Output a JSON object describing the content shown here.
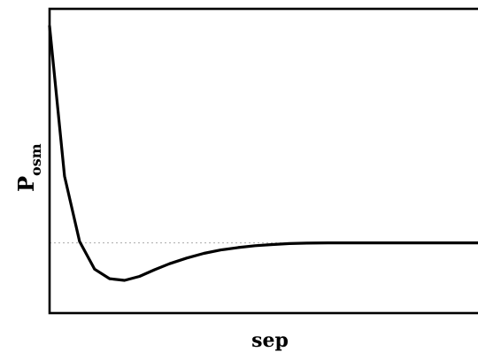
{
  "chart_data": {
    "type": "line",
    "xlabel": "sep",
    "ylabel": {
      "main": "P",
      "sub": "osm"
    },
    "xlim": [
      0,
      10
    ],
    "ylim": [
      -0.3,
      1.0
    ],
    "grid": false,
    "legend": "none",
    "reference_line": {
      "y": 0,
      "style": "dotted",
      "color": "#aaaaaa"
    },
    "series": [
      {
        "color": "#000000",
        "x": [
          0.0,
          0.35,
          0.7,
          1.05,
          1.4,
          1.75,
          2.1,
          2.45,
          2.8,
          3.2,
          3.6,
          4.0,
          4.4,
          4.8,
          5.2,
          5.6,
          6.0,
          6.5,
          7.0,
          7.5,
          8.0,
          8.5,
          9.0,
          9.5,
          10.0
        ],
        "y": [
          0.926,
          0.285,
          0.006,
          -0.112,
          -0.153,
          -0.16,
          -0.143,
          -0.115,
          -0.089,
          -0.065,
          -0.045,
          -0.03,
          -0.02,
          -0.012,
          -0.007,
          -0.003,
          -0.001,
          0.0,
          0.0,
          0.0,
          0.0,
          0.0,
          0.0,
          0.0,
          0.0
        ]
      }
    ]
  }
}
